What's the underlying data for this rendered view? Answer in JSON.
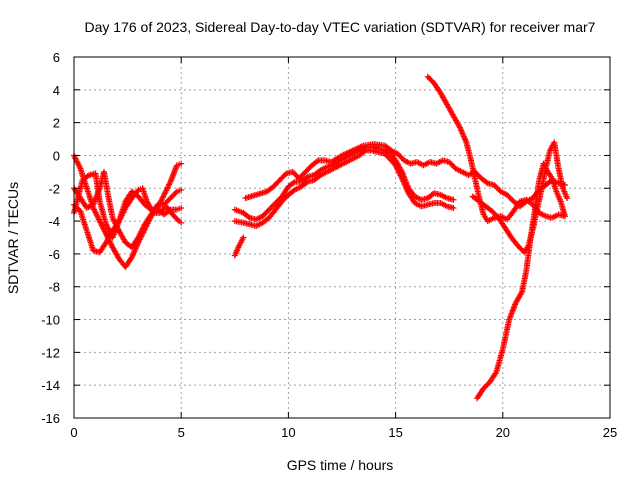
{
  "chart_data": {
    "type": "scatter",
    "title": "Day 176 of 2023, Sidereal Day-to-day VTEC variation (SDTVAR) for receiver mar7",
    "xlabel": "GPS time / hours",
    "ylabel": "SDTVAR / TECUs",
    "xlim": [
      0,
      25
    ],
    "ylim": [
      -16,
      6
    ],
    "xticks": [
      "0",
      "5",
      "10",
      "15",
      "20",
      "25"
    ],
    "yticks": [
      "-16",
      "-14",
      "-12",
      "-10",
      "-8",
      "-6",
      "-4",
      "-2",
      "0",
      "2",
      "4",
      "6"
    ],
    "grid": true,
    "marker": "plus",
    "color": "#ff0000",
    "series": [
      {
        "values": [
          [
            0.0,
            0.0
          ],
          [
            0.3,
            -0.8
          ],
          [
            0.6,
            -2.0
          ],
          [
            0.9,
            -3.2
          ],
          [
            1.2,
            -4.0
          ],
          [
            1.5,
            -4.8
          ],
          [
            1.8,
            -5.6
          ],
          [
            2.1,
            -6.3
          ],
          [
            2.4,
            -6.8
          ],
          [
            2.7,
            -6.2
          ],
          [
            3.0,
            -5.3
          ],
          [
            3.3,
            -4.5
          ],
          [
            3.6,
            -3.7
          ],
          [
            3.9,
            -3.2
          ],
          [
            4.2,
            -2.4
          ],
          [
            4.5,
            -1.6
          ],
          [
            4.8,
            -0.6
          ],
          [
            5.0,
            -0.5
          ]
        ]
      },
      {
        "values": [
          [
            0.0,
            -2.0
          ],
          [
            0.3,
            -2.6
          ],
          [
            0.6,
            -3.2
          ],
          [
            0.9,
            -3.0
          ],
          [
            1.2,
            -2.0
          ],
          [
            1.4,
            -1.0
          ],
          [
            1.6,
            -2.5
          ],
          [
            1.8,
            -3.8
          ],
          [
            2.1,
            -4.6
          ],
          [
            2.4,
            -5.3
          ],
          [
            2.7,
            -5.6
          ],
          [
            3.0,
            -5.0
          ],
          [
            3.3,
            -4.2
          ],
          [
            3.6,
            -3.6
          ],
          [
            3.9,
            -3.0
          ],
          [
            4.2,
            -3.0
          ],
          [
            4.5,
            -2.6
          ],
          [
            4.8,
            -2.2
          ],
          [
            5.0,
            -2.1
          ]
        ]
      },
      {
        "values": [
          [
            0.0,
            -3.0
          ],
          [
            0.3,
            -3.4
          ],
          [
            0.6,
            -4.6
          ],
          [
            0.9,
            -5.8
          ],
          [
            1.2,
            -5.9
          ],
          [
            1.5,
            -5.3
          ],
          [
            1.8,
            -4.6
          ],
          [
            2.1,
            -4.0
          ],
          [
            2.4,
            -3.2
          ],
          [
            2.7,
            -2.6
          ],
          [
            3.0,
            -2.1
          ],
          [
            3.2,
            -2.0
          ],
          [
            3.4,
            -2.8
          ],
          [
            3.7,
            -3.5
          ],
          [
            4.0,
            -3.5
          ],
          [
            4.3,
            -3.1
          ],
          [
            4.6,
            -3.6
          ],
          [
            4.9,
            -4.0
          ],
          [
            5.0,
            -4.1
          ]
        ]
      },
      {
        "values": [
          [
            0.0,
            -3.5
          ],
          [
            0.2,
            -2.5
          ],
          [
            0.4,
            -1.5
          ],
          [
            0.7,
            -1.2
          ],
          [
            1.0,
            -1.1
          ],
          [
            1.2,
            -2.8
          ],
          [
            1.5,
            -4.2
          ],
          [
            1.8,
            -5.0
          ],
          [
            2.1,
            -4.0
          ],
          [
            2.4,
            -2.8
          ],
          [
            2.7,
            -2.2
          ],
          [
            3.0,
            -2.5
          ],
          [
            3.3,
            -3.0
          ],
          [
            3.6,
            -3.3
          ],
          [
            3.9,
            -3.3
          ],
          [
            4.2,
            -3.6
          ],
          [
            4.5,
            -3.3
          ],
          [
            4.8,
            -3.3
          ],
          [
            5.0,
            -3.2
          ]
        ]
      },
      {
        "values": [
          [
            7.5,
            -6.1
          ],
          [
            7.7,
            -5.5
          ],
          [
            7.9,
            -5.0
          ]
        ]
      },
      {
        "values": [
          [
            7.5,
            -3.3
          ],
          [
            7.9,
            -3.5
          ],
          [
            8.2,
            -3.8
          ],
          [
            8.5,
            -3.9
          ],
          [
            8.8,
            -3.7
          ],
          [
            9.1,
            -3.3
          ],
          [
            9.4,
            -2.9
          ],
          [
            9.7,
            -2.5
          ],
          [
            10.0,
            -1.9
          ],
          [
            10.3,
            -1.6
          ],
          [
            10.6,
            -1.6
          ],
          [
            10.9,
            -1.3
          ],
          [
            11.2,
            -1.2
          ],
          [
            11.5,
            -0.9
          ],
          [
            11.8,
            -0.7
          ],
          [
            12.1,
            -0.6
          ],
          [
            12.4,
            -0.3
          ],
          [
            12.7,
            -0.1
          ],
          [
            13.0,
            0.1
          ],
          [
            13.3,
            0.3
          ],
          [
            13.6,
            0.5
          ],
          [
            13.9,
            0.5
          ],
          [
            14.2,
            0.4
          ],
          [
            14.5,
            0.3
          ],
          [
            14.8,
            0.1
          ],
          [
            15.0,
            -0.3
          ],
          [
            15.3,
            -1.0
          ],
          [
            15.6,
            -2.0
          ],
          [
            15.9,
            -2.5
          ],
          [
            16.2,
            -2.7
          ],
          [
            16.5,
            -2.6
          ],
          [
            16.8,
            -2.3
          ],
          [
            17.1,
            -2.4
          ],
          [
            17.4,
            -2.6
          ],
          [
            17.7,
            -2.7
          ]
        ]
      },
      {
        "values": [
          [
            7.5,
            -4.0
          ],
          [
            7.9,
            -4.1
          ],
          [
            8.2,
            -4.2
          ],
          [
            8.5,
            -4.3
          ],
          [
            8.8,
            -4.1
          ],
          [
            9.1,
            -3.8
          ],
          [
            9.4,
            -3.3
          ],
          [
            9.7,
            -2.8
          ],
          [
            10.0,
            -2.4
          ],
          [
            10.3,
            -2.1
          ],
          [
            10.6,
            -1.9
          ],
          [
            10.9,
            -1.6
          ],
          [
            11.2,
            -1.5
          ],
          [
            11.5,
            -1.2
          ],
          [
            11.8,
            -1.0
          ],
          [
            12.1,
            -0.8
          ],
          [
            12.4,
            -0.6
          ],
          [
            12.7,
            -0.4
          ],
          [
            13.0,
            -0.2
          ],
          [
            13.3,
            0.0
          ],
          [
            13.6,
            0.3
          ],
          [
            13.9,
            0.3
          ],
          [
            14.2,
            0.2
          ],
          [
            14.5,
            0.1
          ],
          [
            14.8,
            -0.3
          ],
          [
            15.0,
            -0.6
          ],
          [
            15.3,
            -1.4
          ],
          [
            15.6,
            -2.3
          ],
          [
            15.9,
            -2.9
          ],
          [
            16.2,
            -3.1
          ],
          [
            16.5,
            -3.0
          ],
          [
            16.8,
            -2.9
          ],
          [
            17.1,
            -2.9
          ],
          [
            17.4,
            -3.1
          ],
          [
            17.7,
            -3.2
          ]
        ]
      },
      {
        "values": [
          [
            8.0,
            -2.6
          ],
          [
            8.5,
            -2.4
          ],
          [
            9.0,
            -2.2
          ],
          [
            9.3,
            -1.9
          ],
          [
            9.6,
            -1.5
          ],
          [
            9.9,
            -1.1
          ],
          [
            10.2,
            -1.0
          ],
          [
            10.5,
            -1.4
          ],
          [
            10.8,
            -1.0
          ],
          [
            11.1,
            -0.6
          ],
          [
            11.4,
            -0.3
          ],
          [
            11.7,
            -0.3
          ],
          [
            12.0,
            -0.4
          ],
          [
            12.5,
            0.0
          ],
          [
            13.0,
            0.3
          ],
          [
            13.5,
            0.6
          ],
          [
            14.0,
            0.7
          ],
          [
            14.5,
            0.6
          ],
          [
            14.8,
            0.3
          ],
          [
            15.1,
            0.1
          ],
          [
            15.4,
            -0.3
          ],
          [
            15.7,
            -0.5
          ],
          [
            16.0,
            -0.4
          ],
          [
            16.3,
            -0.6
          ],
          [
            16.6,
            -0.4
          ],
          [
            16.9,
            -0.5
          ],
          [
            17.2,
            -0.3
          ],
          [
            17.5,
            -0.4
          ],
          [
            17.8,
            -0.8
          ],
          [
            18.1,
            -1.0
          ],
          [
            18.4,
            -1.2
          ],
          [
            18.7,
            -1.0
          ],
          [
            19.0,
            -1.4
          ],
          [
            19.3,
            -1.7
          ],
          [
            19.6,
            -1.8
          ],
          [
            19.9,
            -2.2
          ],
          [
            20.2,
            -2.4
          ],
          [
            20.5,
            -2.8
          ],
          [
            20.8,
            -3.1
          ],
          [
            21.1,
            -2.8
          ],
          [
            21.4,
            -2.6
          ],
          [
            21.7,
            -2.1
          ],
          [
            22.0,
            -1.8
          ],
          [
            22.3,
            -1.5
          ],
          [
            22.6,
            -1.7
          ],
          [
            22.9,
            -1.8
          ]
        ]
      },
      {
        "values": [
          [
            16.5,
            4.8
          ],
          [
            16.8,
            4.4
          ],
          [
            17.1,
            3.8
          ],
          [
            17.4,
            3.1
          ],
          [
            17.7,
            2.4
          ],
          [
            18.0,
            1.7
          ],
          [
            18.3,
            0.8
          ],
          [
            18.5,
            -0.2
          ],
          [
            18.7,
            -1.4
          ],
          [
            18.9,
            -2.6
          ],
          [
            19.1,
            -3.6
          ],
          [
            19.3,
            -4.0
          ],
          [
            19.6,
            -3.8
          ],
          [
            19.9,
            -3.7
          ],
          [
            20.2,
            -3.9
          ],
          [
            20.5,
            -3.4
          ],
          [
            20.8,
            -2.8
          ],
          [
            21.1,
            -2.7
          ],
          [
            21.4,
            -3.0
          ],
          [
            21.7,
            -3.5
          ],
          [
            22.0,
            -3.7
          ],
          [
            22.3,
            -3.8
          ],
          [
            22.6,
            -3.6
          ],
          [
            22.9,
            -3.7
          ]
        ]
      },
      {
        "values": [
          [
            18.6,
            -2.5
          ],
          [
            18.9,
            -2.8
          ],
          [
            19.2,
            -3.1
          ],
          [
            19.5,
            -3.4
          ],
          [
            19.8,
            -3.8
          ],
          [
            20.1,
            -4.4
          ],
          [
            20.4,
            -5.0
          ],
          [
            20.7,
            -5.5
          ],
          [
            21.0,
            -5.9
          ],
          [
            21.2,
            -5.5
          ],
          [
            21.4,
            -4.5
          ],
          [
            21.6,
            -3.3
          ],
          [
            21.8,
            -2.1
          ],
          [
            22.0,
            -0.8
          ],
          [
            22.2,
            0.3
          ],
          [
            22.4,
            0.8
          ],
          [
            22.6,
            -0.8
          ],
          [
            22.8,
            -2.0
          ],
          [
            23.0,
            -2.6
          ]
        ]
      },
      {
        "values": [
          [
            18.8,
            -14.8
          ],
          [
            19.1,
            -14.2
          ],
          [
            19.4,
            -13.8
          ],
          [
            19.7,
            -13.2
          ],
          [
            20.0,
            -11.8
          ],
          [
            20.3,
            -10.0
          ],
          [
            20.6,
            -9.0
          ],
          [
            20.9,
            -8.3
          ],
          [
            21.1,
            -7.0
          ],
          [
            21.3,
            -5.0
          ],
          [
            21.5,
            -3.3
          ],
          [
            21.7,
            -1.5
          ],
          [
            21.9,
            -0.5
          ],
          [
            22.1,
            -1.0
          ],
          [
            22.3,
            -1.4
          ],
          [
            22.5,
            -2.2
          ],
          [
            22.7,
            -2.8
          ],
          [
            22.9,
            -3.7
          ]
        ]
      }
    ]
  }
}
